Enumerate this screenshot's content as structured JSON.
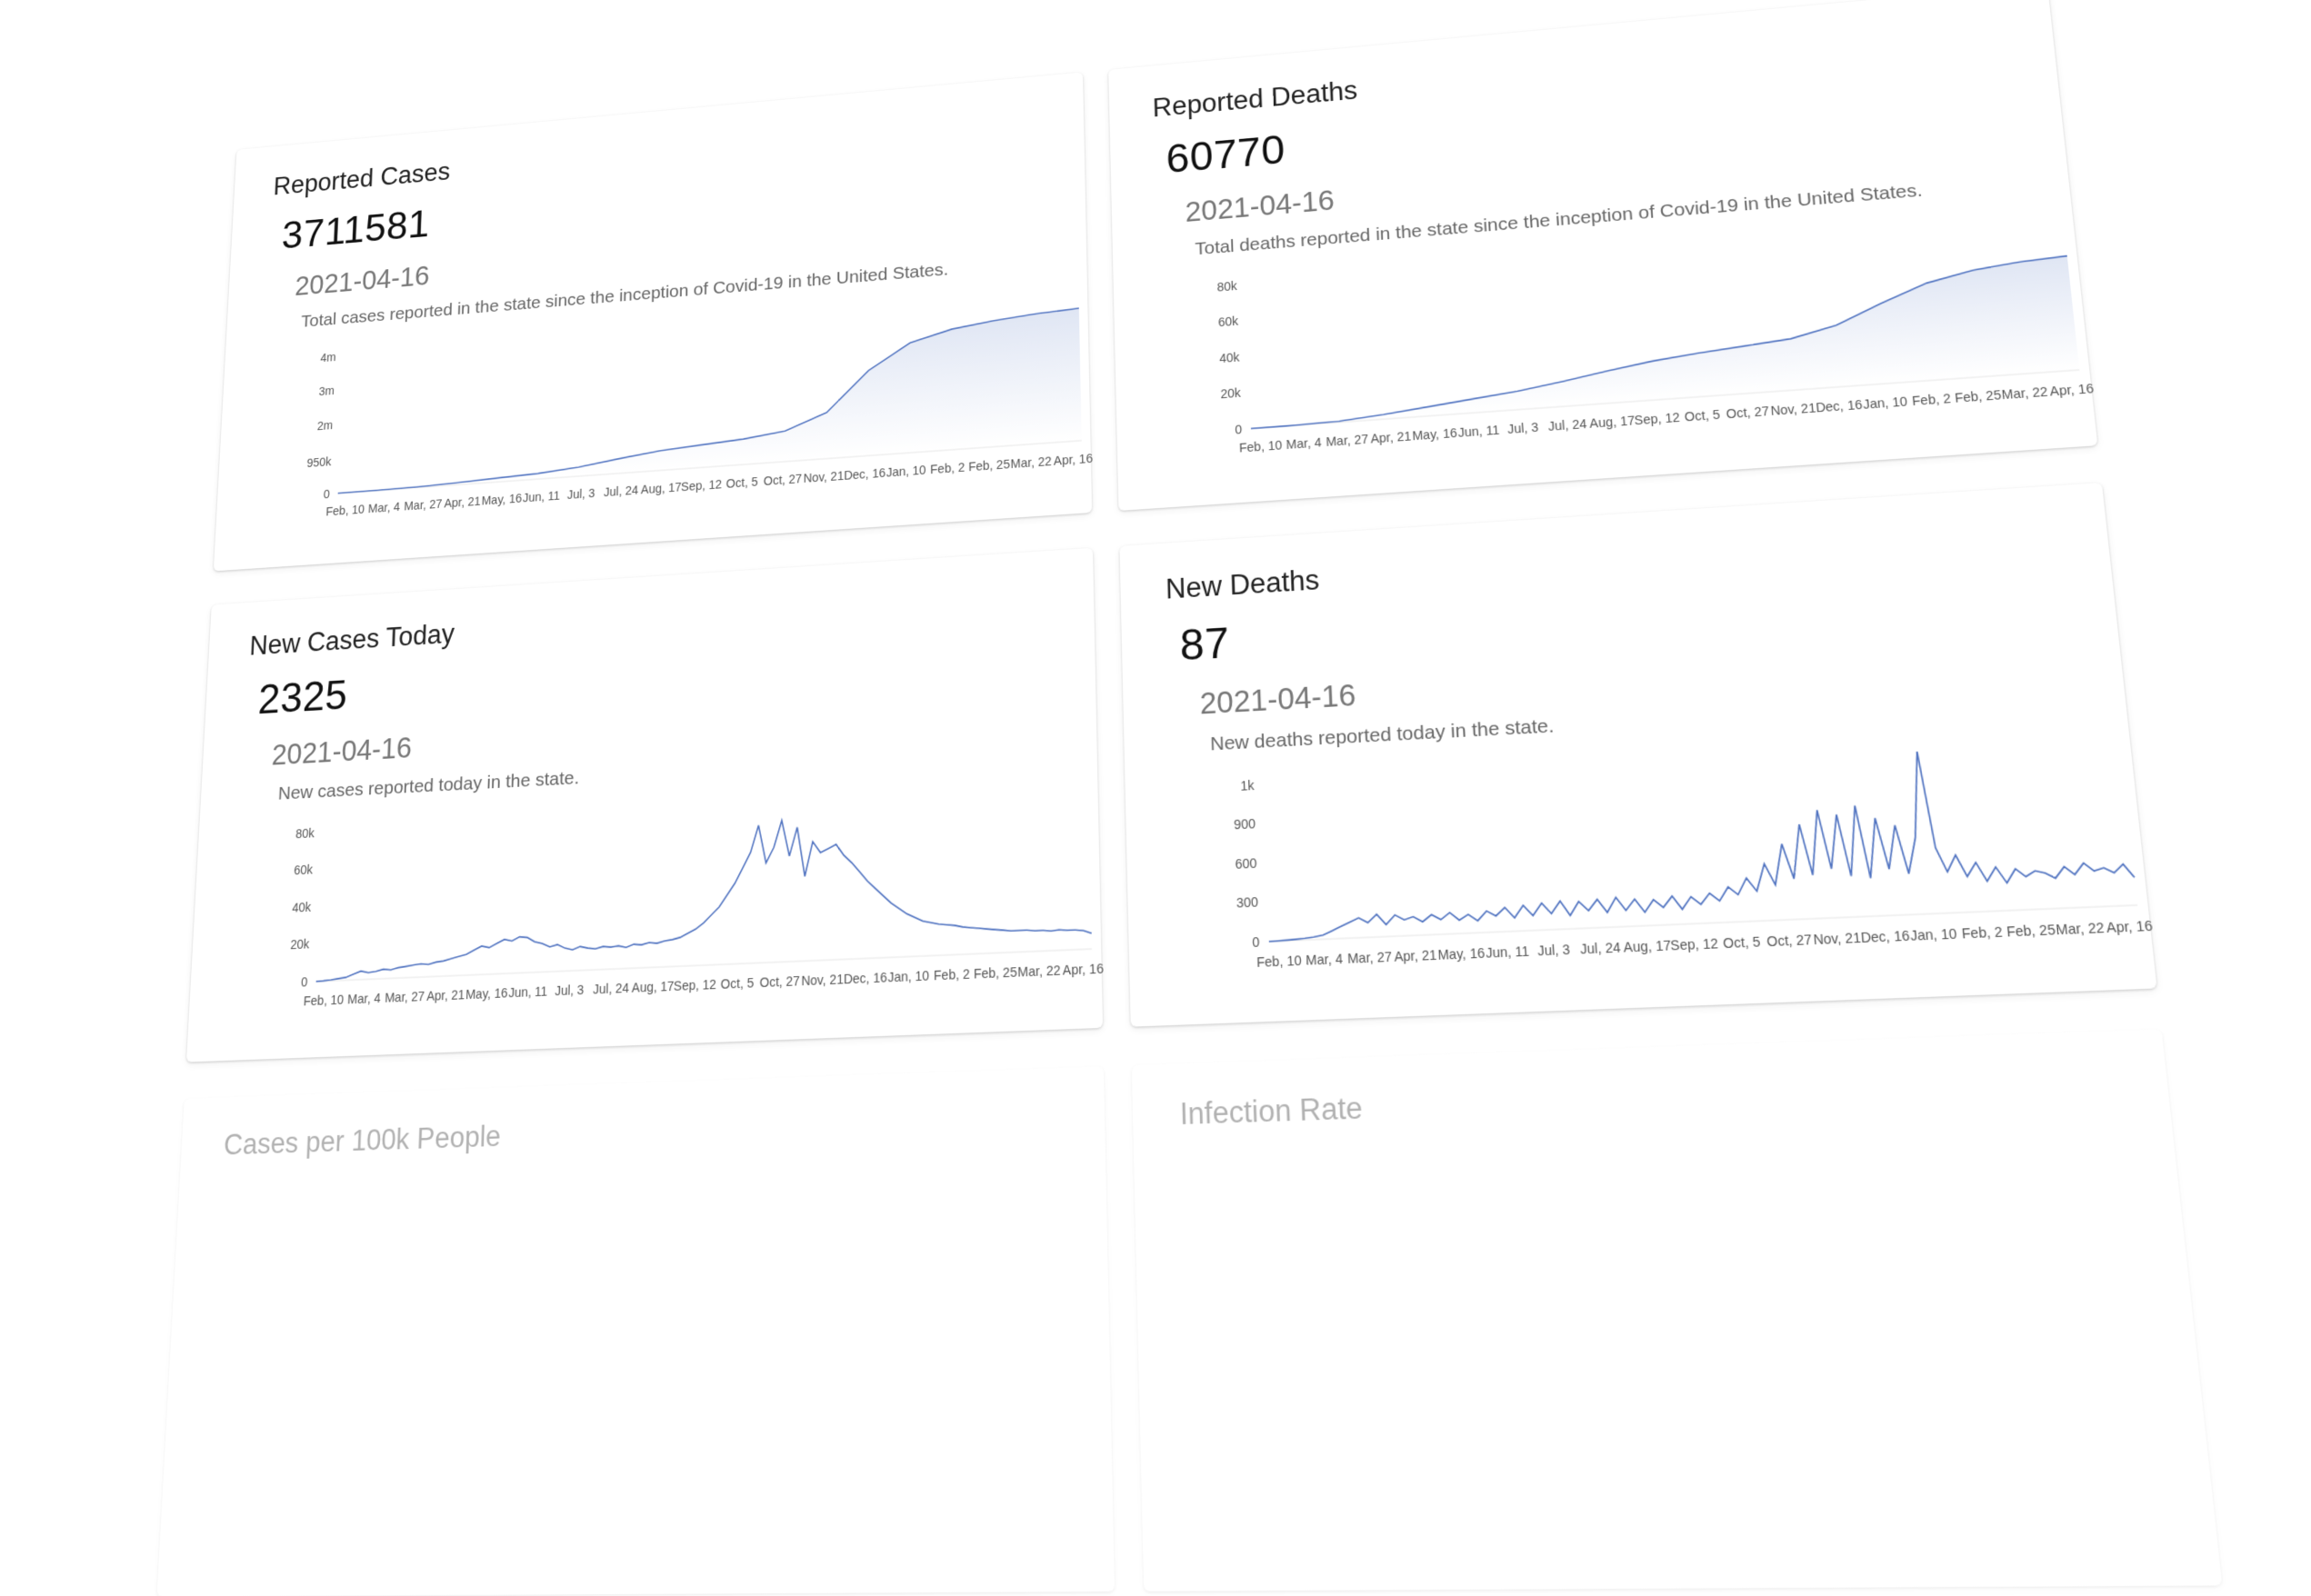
{
  "cards": {
    "cases": {
      "title": "Reported Cases",
      "value": "3711581",
      "date": "2021-04-16",
      "description": "Total cases reported in the state since the inception of Covid-19 in the United States."
    },
    "deaths": {
      "title": "Reported Deaths",
      "value": "60770",
      "date": "2021-04-16",
      "description": "Total deaths reported in the state since the inception of Covid-19 in the United States."
    },
    "new_cases": {
      "title": "New Cases Today",
      "value": "2325",
      "date": "2021-04-16",
      "description": "New cases reported today in the state."
    },
    "new_deaths": {
      "title": "New Deaths",
      "value": "87",
      "date": "2021-04-16",
      "description": "New deaths reported today in the state."
    },
    "per100k": {
      "title": "Cases per 100k People"
    },
    "infection": {
      "title": "Infection Rate"
    }
  },
  "chart_data": [
    {
      "id": "cases",
      "type": "area",
      "x_ticks": [
        "Feb, 10",
        "Mar, 4",
        "Mar, 27",
        "Apr, 21",
        "May, 16",
        "Jun, 11",
        "Jul, 3",
        "Jul, 24",
        "Aug, 17",
        "Sep, 12",
        "Oct, 5",
        "Oct, 27",
        "Nov, 21",
        "Dec, 16",
        "Jan, 10",
        "Feb, 2",
        "Feb, 25",
        "Mar, 22",
        "Apr, 16"
      ],
      "y_ticks": [
        {
          "label": "0",
          "value": 0
        },
        {
          "label": "950k",
          "value": 950000
        },
        {
          "label": "2m",
          "value": 2000000
        },
        {
          "label": "3m",
          "value": 3000000
        },
        {
          "label": "4m",
          "value": 4000000
        }
      ],
      "ylim": [
        0,
        4000000
      ],
      "values": [
        0,
        5000,
        20000,
        60000,
        110000,
        160000,
        260000,
        420000,
        560000,
        640000,
        720000,
        860000,
        1300000,
        2400000,
        3100000,
        3400000,
        3550000,
        3650000,
        3711581
      ]
    },
    {
      "id": "deaths",
      "type": "area",
      "x_ticks": [
        "Feb, 10",
        "Mar, 4",
        "Mar, 27",
        "Apr, 21",
        "May, 16",
        "Jun, 11",
        "Jul, 3",
        "Jul, 24",
        "Aug, 17",
        "Sep, 12",
        "Oct, 5",
        "Oct, 27",
        "Nov, 21",
        "Dec, 16",
        "Jan, 10",
        "Feb, 2",
        "Feb, 25",
        "Mar, 22",
        "Apr, 16"
      ],
      "y_ticks": [
        {
          "label": "0",
          "value": 0
        },
        {
          "label": "20k",
          "value": 20000
        },
        {
          "label": "40k",
          "value": 40000
        },
        {
          "label": "60k",
          "value": 60000
        },
        {
          "label": "80k",
          "value": 80000
        }
      ],
      "ylim": [
        0,
        80000
      ],
      "values": [
        0,
        100,
        600,
        2500,
        5000,
        7500,
        10000,
        13500,
        17500,
        21000,
        23500,
        25500,
        27500,
        33000,
        43000,
        52000,
        57000,
        59500,
        60770
      ]
    },
    {
      "id": "new_cases",
      "type": "line",
      "x_ticks": [
        "Feb, 10",
        "Mar, 4",
        "Mar, 27",
        "Apr, 21",
        "May, 16",
        "Jun, 11",
        "Jul, 3",
        "Jul, 24",
        "Aug, 17",
        "Sep, 12",
        "Oct, 5",
        "Oct, 27",
        "Nov, 21",
        "Dec, 16",
        "Jan, 10",
        "Feb, 2",
        "Feb, 25",
        "Mar, 22",
        "Apr, 16"
      ],
      "y_ticks": [
        {
          "label": "0",
          "value": 0
        },
        {
          "label": "20k",
          "value": 20000
        },
        {
          "label": "40k",
          "value": 40000
        },
        {
          "label": "60k",
          "value": 60000
        },
        {
          "label": "80k",
          "value": 80000
        }
      ],
      "ylim": [
        0,
        80000
      ],
      "values": [
        0,
        200,
        500,
        1000,
        1500,
        3000,
        4500,
        3500,
        4000,
        5000,
        4500,
        5500,
        6000,
        6500,
        7000,
        6500,
        7500,
        8000,
        9000,
        10000,
        11000,
        13000,
        15000,
        14000,
        16000,
        18000,
        17000,
        19000,
        18500,
        16000,
        15000,
        13000,
        14000,
        12000,
        11000,
        12500,
        11500,
        11000,
        12000,
        11500,
        12000,
        11000,
        12500,
        12000,
        13000,
        12500,
        13500,
        14000,
        15000,
        17000,
        19000,
        22000,
        26000,
        30000,
        36000,
        42000,
        50000,
        58000,
        72000,
        52000,
        60000,
        74000,
        55000,
        70000,
        44000,
        62000,
        56000,
        58000,
        60000,
        54000,
        50000,
        45000,
        40000,
        36000,
        32000,
        28000,
        25000,
        22000,
        20000,
        18000,
        17000,
        16000,
        15500,
        15000,
        14000,
        13500,
        13000,
        12500,
        12000,
        11500,
        11000,
        11000,
        11000,
        10500,
        10500,
        10000,
        10500,
        10000,
        10000,
        9500,
        8000
      ]
    },
    {
      "id": "new_deaths",
      "type": "line",
      "x_ticks": [
        "Feb, 10",
        "Mar, 4",
        "Mar, 27",
        "Apr, 21",
        "May, 16",
        "Jun, 11",
        "Jul, 3",
        "Jul, 24",
        "Aug, 17",
        "Sep, 12",
        "Oct, 5",
        "Oct, 27",
        "Nov, 21",
        "Dec, 16",
        "Jan, 10",
        "Feb, 2",
        "Feb, 25",
        "Mar, 22",
        "Apr, 16"
      ],
      "y_ticks": [
        {
          "label": "0",
          "value": 0
        },
        {
          "label": "300",
          "value": 300
        },
        {
          "label": "600",
          "value": 600
        },
        {
          "label": "900",
          "value": 900
        },
        {
          "label": "1k",
          "value": 1200
        }
      ],
      "ylim": [
        0,
        1200
      ],
      "values": [
        0,
        2,
        4,
        8,
        12,
        20,
        30,
        60,
        90,
        120,
        150,
        110,
        170,
        90,
        160,
        120,
        140,
        100,
        150,
        110,
        160,
        100,
        140,
        90,
        160,
        120,
        180,
        100,
        190,
        110,
        200,
        120,
        210,
        100,
        200,
        130,
        210,
        110,
        220,
        120,
        200,
        100,
        190,
        130,
        210,
        110,
        200,
        140,
        220,
        160,
        260,
        200,
        320,
        220,
        420,
        260,
        560,
        300,
        700,
        320,
        800,
        360,
        760,
        300,
        820,
        280,
        720,
        340,
        660,
        300,
        560,
        1200,
        480,
        300,
        420,
        260,
        360,
        220,
        320,
        200,
        300,
        240,
        280,
        260,
        220,
        300,
        240,
        320,
        260,
        280,
        240,
        300,
        200
      ]
    }
  ]
}
